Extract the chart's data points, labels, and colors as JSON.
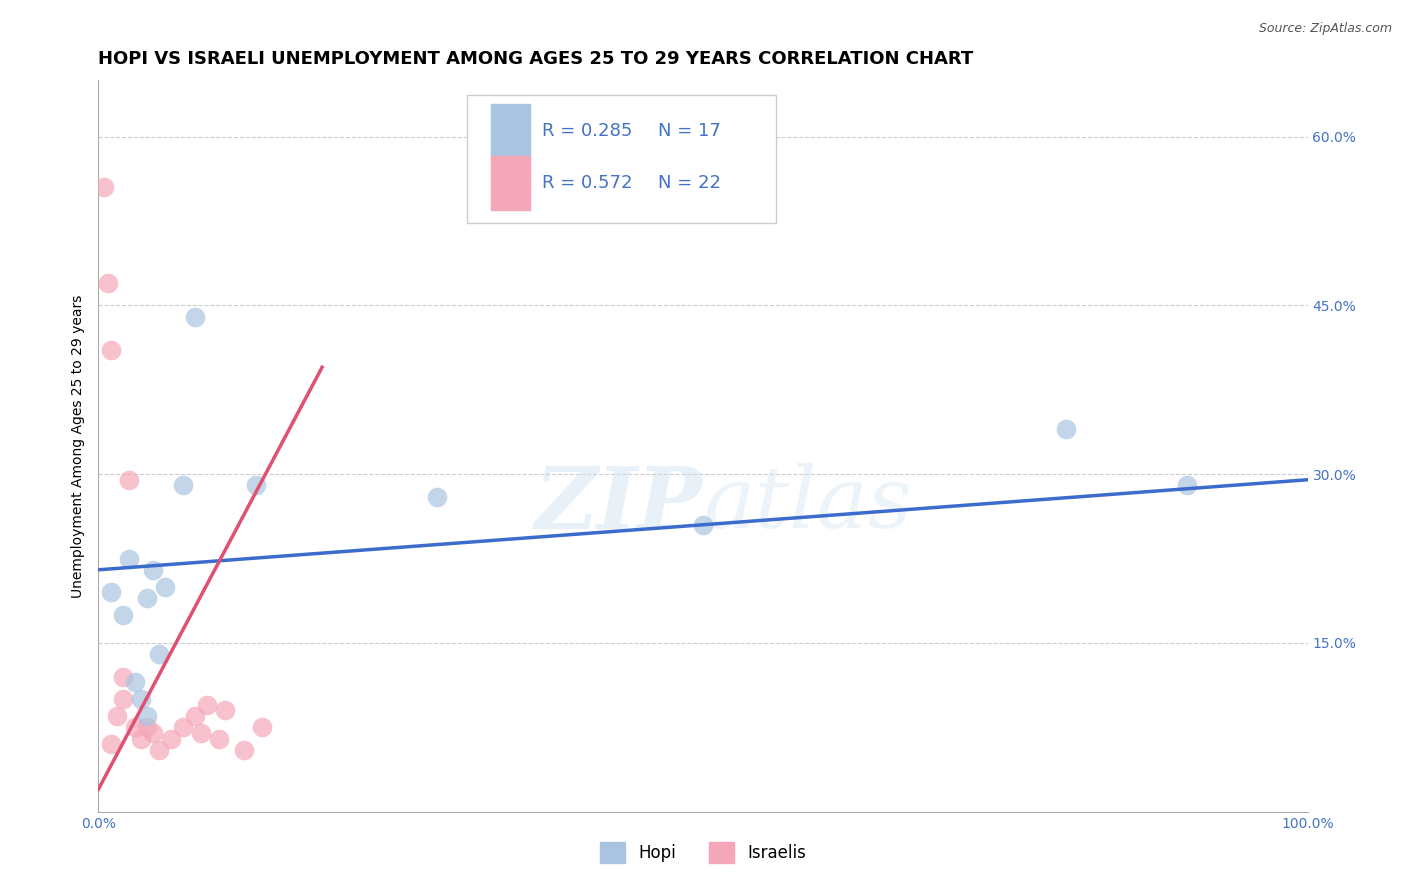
{
  "title": "HOPI VS ISRAELI UNEMPLOYMENT AMONG AGES 25 TO 29 YEARS CORRELATION CHART",
  "source": "Source: ZipAtlas.com",
  "ylabel": "Unemployment Among Ages 25 to 29 years",
  "xlim": [
    0.0,
    1.0
  ],
  "ylim": [
    0.0,
    0.65
  ],
  "xticks": [
    0.0,
    0.25,
    0.5,
    0.75,
    1.0
  ],
  "xtick_labels": [
    "0.0%",
    "",
    "",
    "",
    "100.0%"
  ],
  "yticks": [
    0.0,
    0.15,
    0.3,
    0.45,
    0.6
  ],
  "ytick_labels": [
    "",
    "15.0%",
    "30.0%",
    "45.0%",
    "60.0%"
  ],
  "hopi_color": "#a8c4e0",
  "israelis_color": "#f4a7b9",
  "hopi_line_color": "#3b6bcc",
  "israelis_line_color": "#e05070",
  "legend_r_hopi": "R = 0.285",
  "legend_n_hopi": "N = 17",
  "legend_r_israelis": "R = 0.572",
  "legend_n_israelis": "N = 22",
  "watermark_zip": "ZIP",
  "watermark_atlas": "atlas",
  "hopi_x": [
    0.01,
    0.02,
    0.025,
    0.03,
    0.035,
    0.04,
    0.04,
    0.045,
    0.05,
    0.055,
    0.07,
    0.08,
    0.13,
    0.28,
    0.5,
    0.8,
    0.9
  ],
  "hopi_y": [
    0.195,
    0.175,
    0.225,
    0.115,
    0.1,
    0.085,
    0.19,
    0.215,
    0.14,
    0.2,
    0.29,
    0.44,
    0.29,
    0.28,
    0.255,
    0.34,
    0.29
  ],
  "israelis_x": [
    0.005,
    0.008,
    0.01,
    0.01,
    0.015,
    0.02,
    0.02,
    0.025,
    0.03,
    0.035,
    0.04,
    0.045,
    0.05,
    0.06,
    0.07,
    0.08,
    0.085,
    0.09,
    0.1,
    0.105,
    0.12,
    0.135
  ],
  "israelis_y": [
    0.555,
    0.47,
    0.41,
    0.06,
    0.085,
    0.1,
    0.12,
    0.295,
    0.075,
    0.065,
    0.075,
    0.07,
    0.055,
    0.065,
    0.075,
    0.085,
    0.07,
    0.095,
    0.065,
    0.09,
    0.055,
    0.075
  ],
  "hopi_trendline_x": [
    0.0,
    1.0
  ],
  "hopi_trendline_y": [
    0.215,
    0.295
  ],
  "israelis_trendline_x": [
    0.0,
    0.185
  ],
  "israelis_trendline_y": [
    0.02,
    0.395
  ],
  "grid_color": "#cccccc",
  "background_color": "#ffffff",
  "title_fontsize": 13,
  "axis_label_fontsize": 10,
  "tick_fontsize": 10,
  "legend_fontsize": 13,
  "tick_color": "#4472c4"
}
